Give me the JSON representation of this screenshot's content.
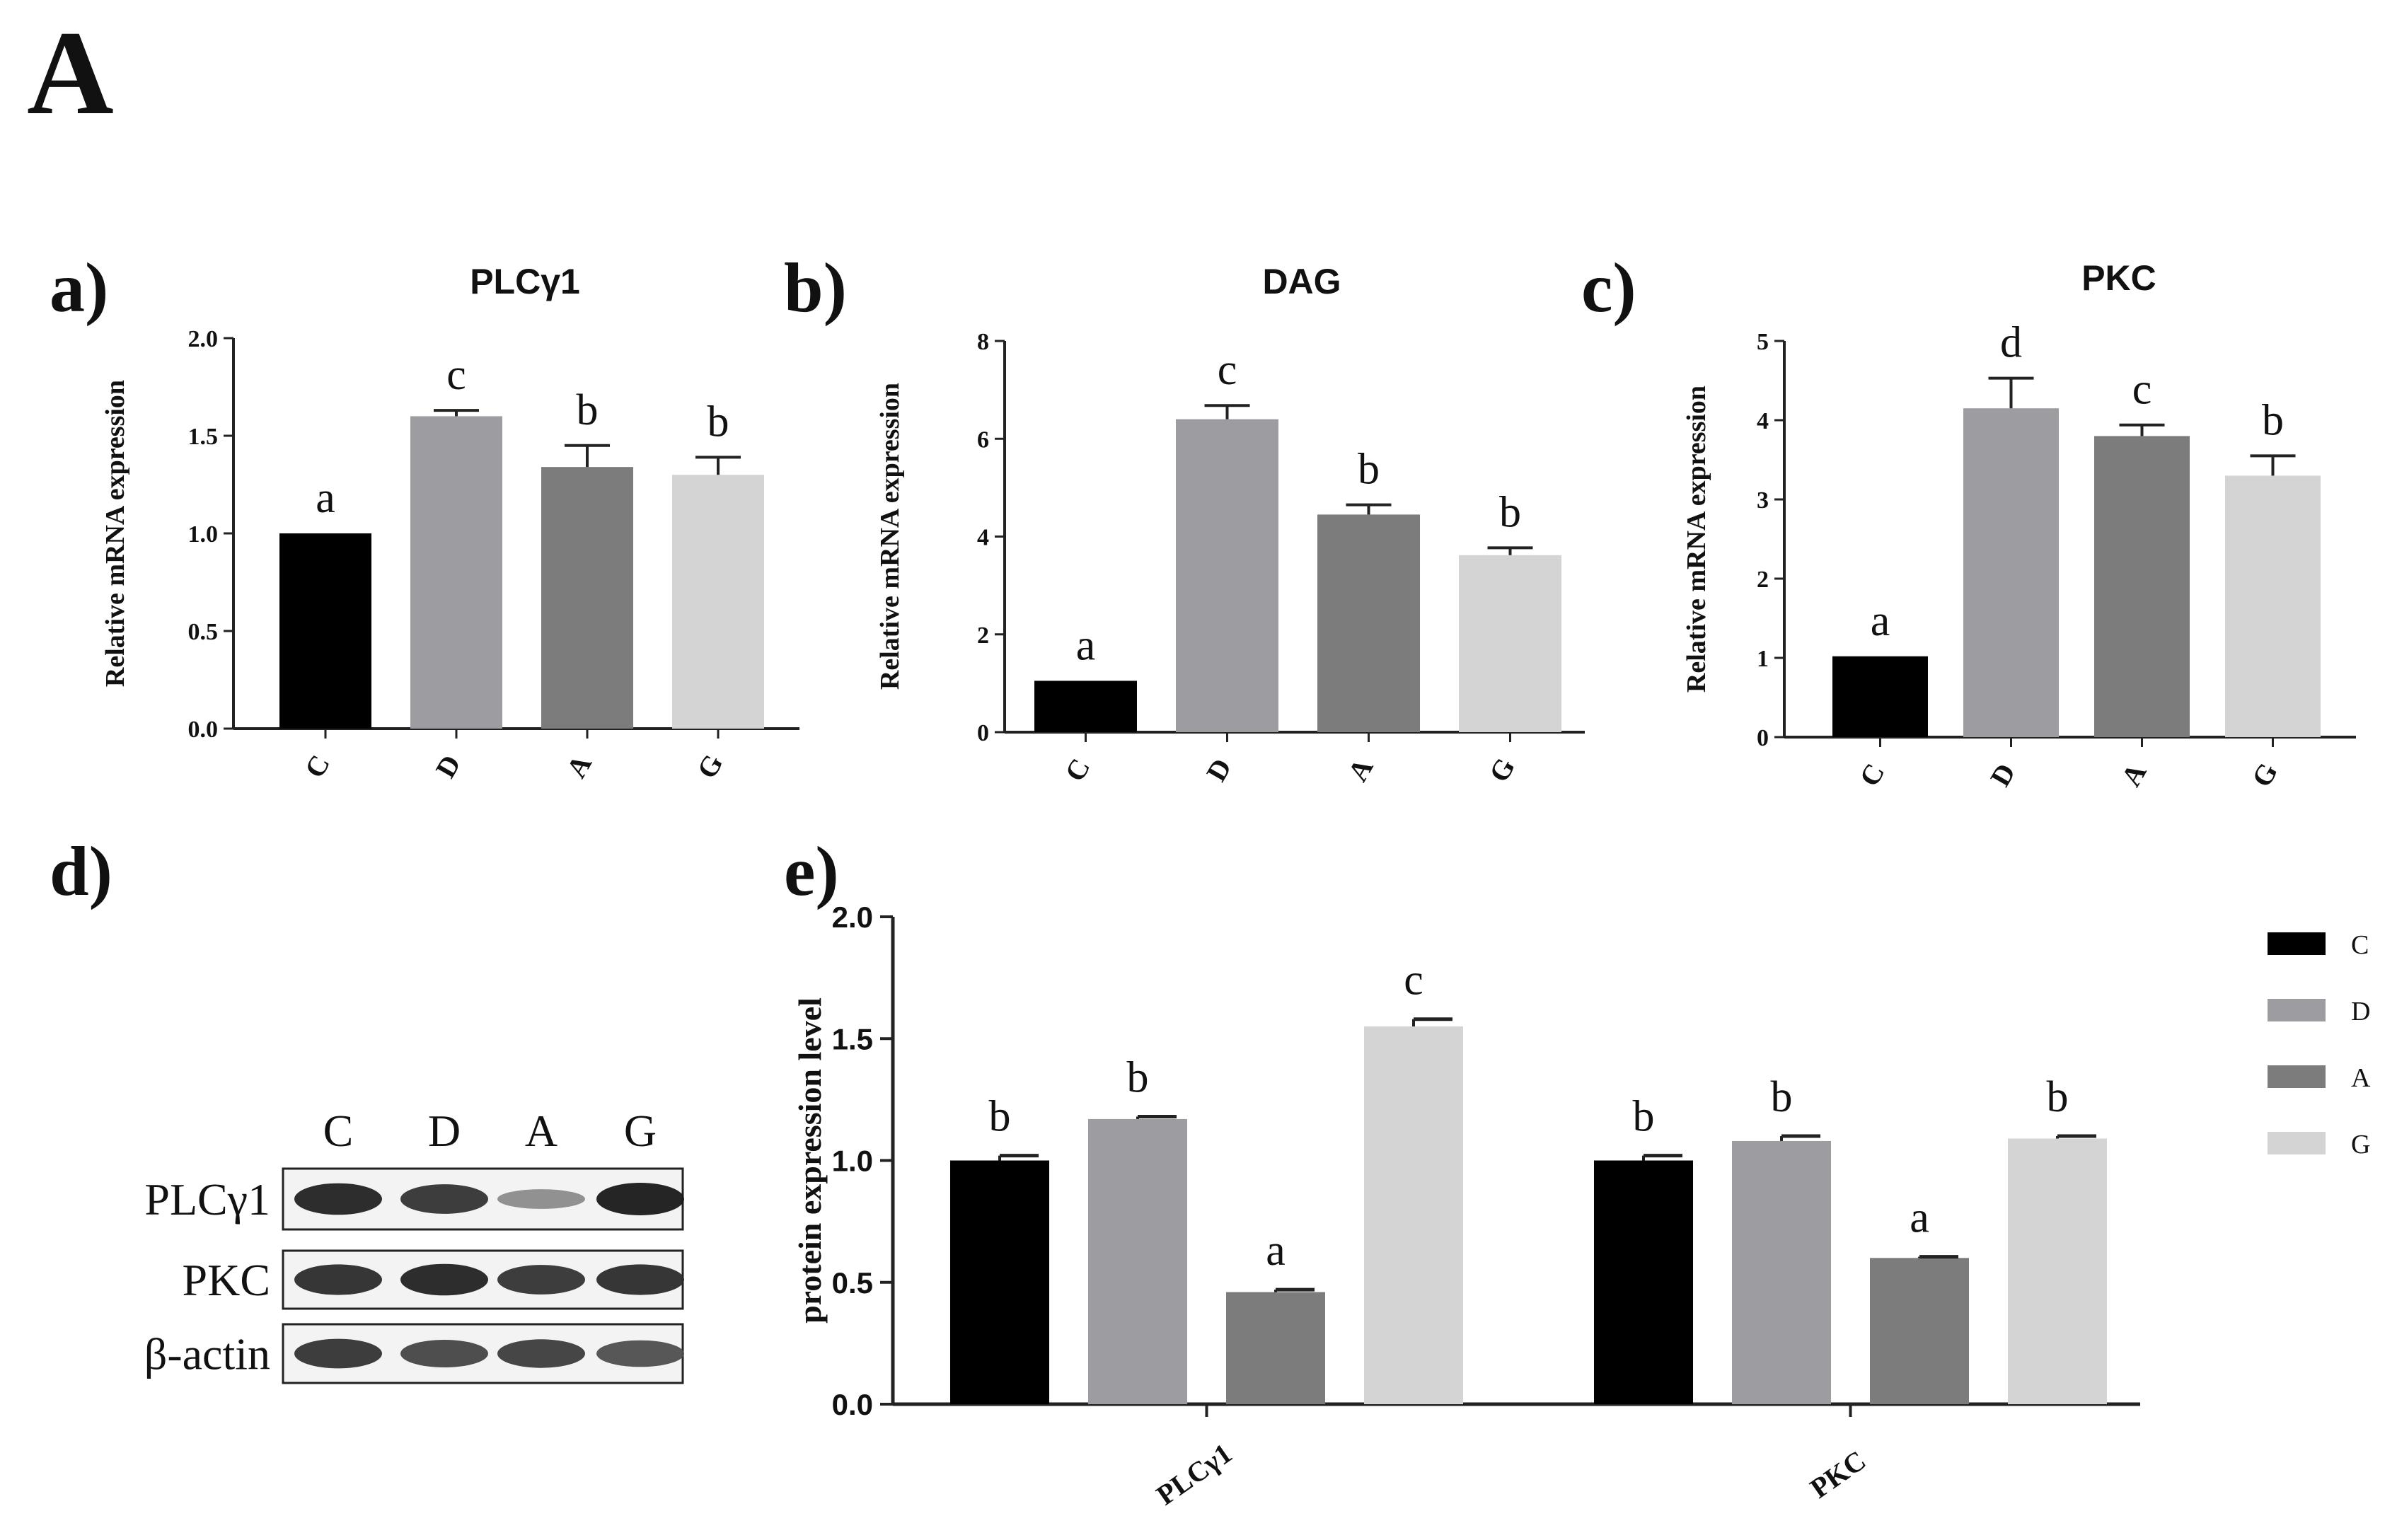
{
  "figure_label": "A",
  "colors": {
    "C": "#000000",
    "D": "#9d9ca1",
    "A": "#7c7c7c",
    "G": "#d4d4d4"
  },
  "chart_data": [
    {
      "panel": "a)",
      "type": "bar",
      "title": "PLCγ1",
      "ylabel": "Relative mRNA expression",
      "xlabel": "",
      "categories": [
        "C",
        "D",
        "A",
        "G"
      ],
      "values": [
        1.0,
        1.6,
        1.34,
        1.3
      ],
      "errors": [
        0.0,
        0.03,
        0.11,
        0.09
      ],
      "letters": [
        "a",
        "c",
        "b",
        "b"
      ],
      "ylim": [
        0,
        2.0
      ],
      "yticks": [
        "0.0",
        "0.5",
        "1.0",
        "1.5",
        "2.0"
      ]
    },
    {
      "panel": "b)",
      "type": "bar",
      "title": "DAG",
      "ylabel": "Relative mRNA expression",
      "xlabel": "",
      "categories": [
        "C",
        "D",
        "A",
        "G"
      ],
      "values": [
        1.05,
        6.4,
        4.45,
        3.62
      ],
      "errors": [
        0.0,
        0.28,
        0.2,
        0.15
      ],
      "letters": [
        "a",
        "c",
        "b",
        "b"
      ],
      "ylim": [
        0,
        8
      ],
      "yticks": [
        "0",
        "2",
        "4",
        "6",
        "8"
      ]
    },
    {
      "panel": "c)",
      "type": "bar",
      "title": "PKC",
      "ylabel": "Relative mRNA expression",
      "xlabel": "",
      "categories": [
        "C",
        "D",
        "A",
        "G"
      ],
      "values": [
        1.02,
        4.15,
        3.8,
        3.3
      ],
      "errors": [
        0.0,
        0.38,
        0.14,
        0.25
      ],
      "letters": [
        "a",
        "d",
        "c",
        "b"
      ],
      "ylim": [
        0,
        5
      ],
      "yticks": [
        "0",
        "1",
        "2",
        "3",
        "4",
        "5"
      ]
    },
    {
      "panel": "e)",
      "type": "bar",
      "title": "",
      "ylabel": "protein expression level",
      "xlabel": "",
      "categories": [
        "PLCγ1",
        "PKC"
      ],
      "series": [
        {
          "name": "C",
          "values": [
            1.0,
            1.0
          ],
          "errors": [
            0.02,
            0.02
          ],
          "letters": [
            "b",
            "b"
          ]
        },
        {
          "name": "D",
          "values": [
            1.17,
            1.08
          ],
          "errors": [
            0.01,
            0.02
          ],
          "letters": [
            "b",
            "b"
          ]
        },
        {
          "name": "A",
          "values": [
            0.46,
            0.6
          ],
          "errors": [
            0.01,
            0.005
          ],
          "letters": [
            "a",
            "a"
          ]
        },
        {
          "name": "G",
          "values": [
            1.55,
            1.09
          ],
          "errors": [
            0.03,
            0.01
          ],
          "letters": [
            "c",
            "b"
          ]
        }
      ],
      "ylim": [
        0,
        2.0
      ],
      "yticks": [
        "0.0",
        "0.5",
        "1.0",
        "1.5",
        "2.0"
      ],
      "legend": "right"
    }
  ],
  "blot": {
    "panel": "d)",
    "lanes": [
      "C",
      "D",
      "A",
      "G"
    ],
    "rows": [
      {
        "label": "PLCγ1",
        "intensity": [
          0.95,
          0.85,
          0.35,
          1.0
        ]
      },
      {
        "label": "PKC",
        "intensity": [
          0.9,
          0.95,
          0.85,
          0.9
        ]
      },
      {
        "label": "β-actin",
        "intensity": [
          0.85,
          0.75,
          0.8,
          0.7
        ]
      }
    ]
  }
}
